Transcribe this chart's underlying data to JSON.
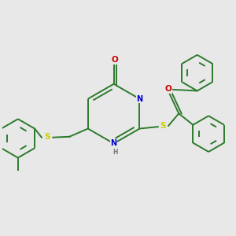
{
  "bg_color": "#e8e8e8",
  "bond_color": "#2d7a2d",
  "atom_colors": {
    "N": "#0000cc",
    "O": "#cc0000",
    "S": "#cccc00",
    "H": "#777777"
  },
  "line_width": 1.4,
  "figsize": [
    3.0,
    3.0
  ],
  "dpi": 100
}
